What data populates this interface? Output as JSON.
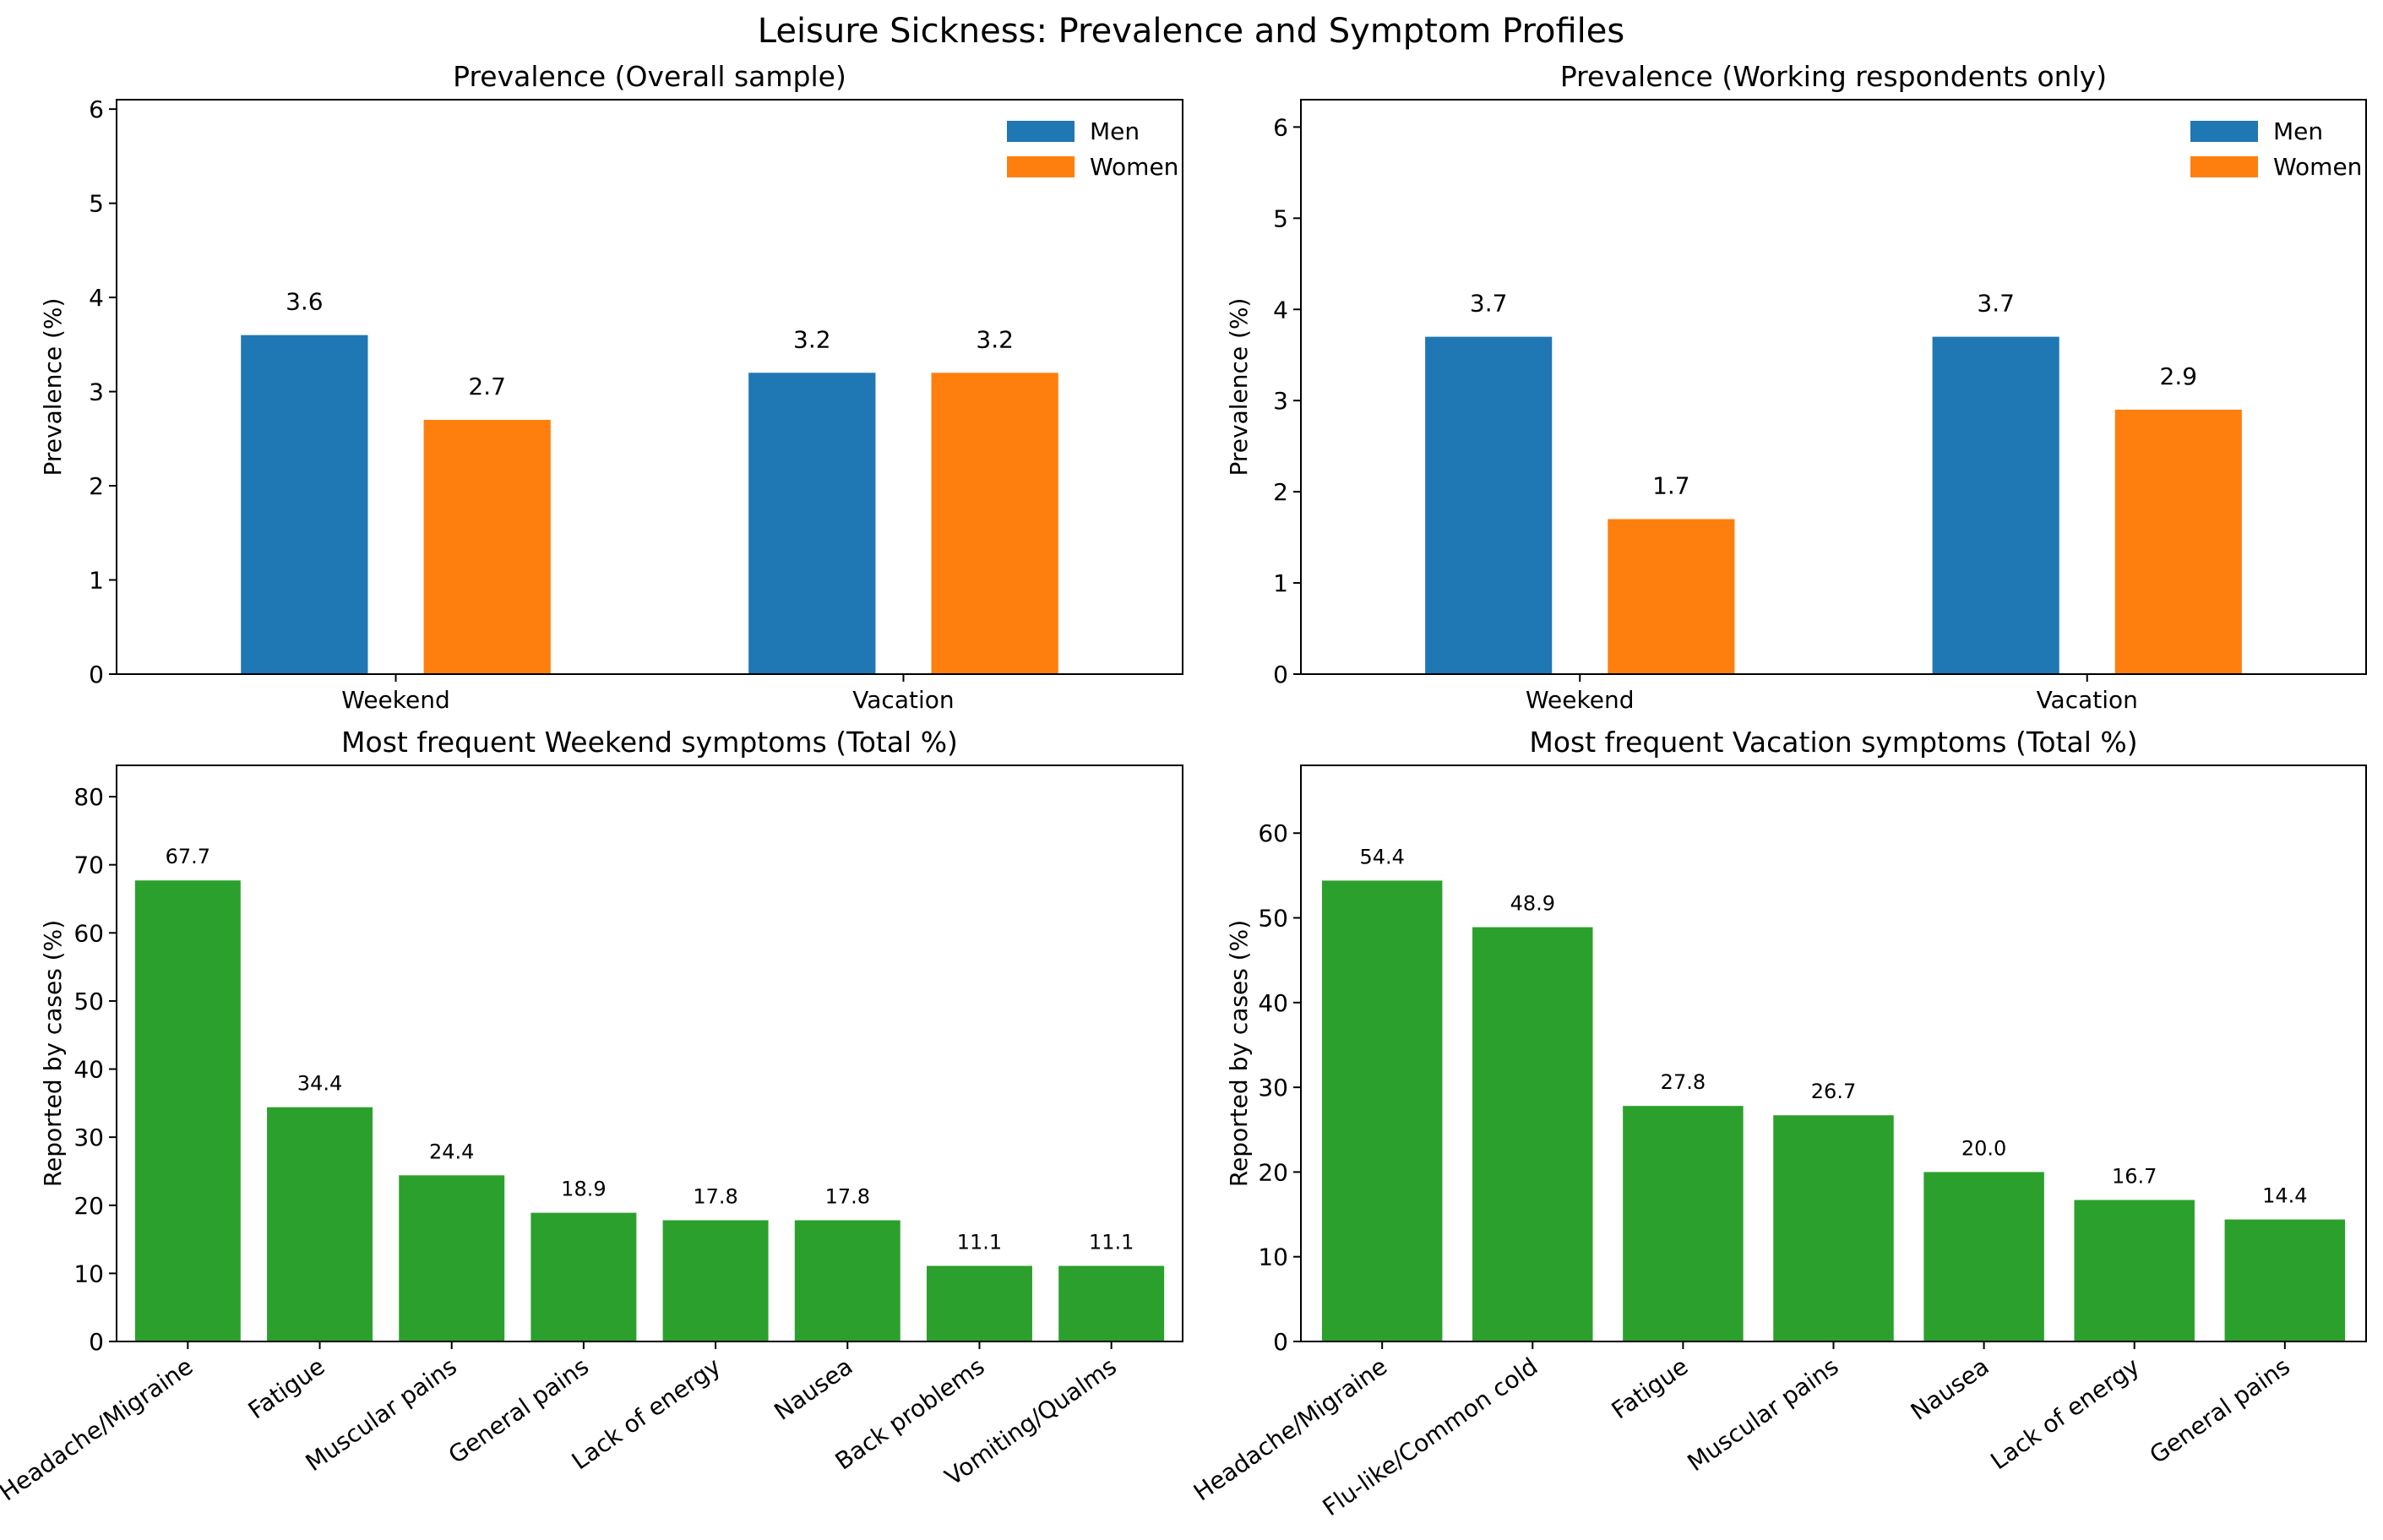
{
  "figure_title": "Leisure Sickness: Prevalence and Symptom Profiles",
  "colors": {
    "men": "#1f77b4",
    "women": "#ff7f0e",
    "symptoms": "#2ca02c"
  },
  "chart_data": [
    {
      "type": "bar",
      "title": "Prevalence (Overall sample)",
      "categories": [
        "Weekend",
        "Vacation"
      ],
      "series": [
        {
          "name": "Men",
          "values": [
            3.6,
            3.2
          ]
        },
        {
          "name": "Women",
          "values": [
            2.7,
            3.2
          ]
        }
      ],
      "value_labels": [
        [
          "3.6",
          "3.2"
        ],
        [
          "2.7",
          "3.2"
        ]
      ],
      "xlabel": "",
      "ylabel": "Prevalence (%)",
      "ylim": [
        0,
        6.1
      ],
      "yticks": [
        0,
        1,
        2,
        3,
        4,
        5,
        6
      ],
      "legend": "top-right"
    },
    {
      "type": "bar",
      "title": "Prevalence (Working respondents only)",
      "categories": [
        "Weekend",
        "Vacation"
      ],
      "series": [
        {
          "name": "Men",
          "values": [
            3.7,
            3.7
          ]
        },
        {
          "name": "Women",
          "values": [
            1.7,
            2.9
          ]
        }
      ],
      "value_labels": [
        [
          "3.7",
          "3.7"
        ],
        [
          "1.7",
          "2.9"
        ]
      ],
      "xlabel": "",
      "ylabel": "Prevalence (%)",
      "ylim": [
        0,
        6.3
      ],
      "yticks": [
        0,
        1,
        2,
        3,
        4,
        5,
        6
      ],
      "legend": "top-right"
    },
    {
      "type": "bar",
      "title": "Most frequent Weekend symptoms (Total %)",
      "categories": [
        "Headache/Migraine",
        "Fatigue",
        "Muscular pains",
        "General pains",
        "Lack of energy",
        "Nausea",
        "Back problems",
        "Vomiting/Qualms"
      ],
      "values": [
        67.7,
        34.4,
        24.4,
        18.9,
        17.8,
        17.8,
        11.1,
        11.1
      ],
      "value_labels": [
        "67.7",
        "34.4",
        "24.4",
        "18.9",
        "17.8",
        "17.8",
        "11.1",
        "11.1"
      ],
      "xlabel": "",
      "ylabel": "Reported by cases (%)",
      "ylim": [
        0,
        84.6
      ],
      "yticks": [
        0,
        10,
        20,
        30,
        40,
        50,
        60,
        70,
        80
      ]
    },
    {
      "type": "bar",
      "title": "Most frequent Vacation symptoms (Total %)",
      "categories": [
        "Headache/Migraine",
        "Flu-like/Common cold",
        "Fatigue",
        "Muscular pains",
        "Nausea",
        "Lack of energy",
        "General pains"
      ],
      "values": [
        54.4,
        48.9,
        27.8,
        26.7,
        20.0,
        16.7,
        14.4
      ],
      "value_labels": [
        "54.4",
        "48.9",
        "27.8",
        "26.7",
        "20.0",
        "16.7",
        "14.4"
      ],
      "xlabel": "",
      "ylabel": "Reported by cases (%)",
      "ylim": [
        0,
        68
      ],
      "yticks": [
        0,
        10,
        20,
        30,
        40,
        50,
        60
      ]
    }
  ]
}
